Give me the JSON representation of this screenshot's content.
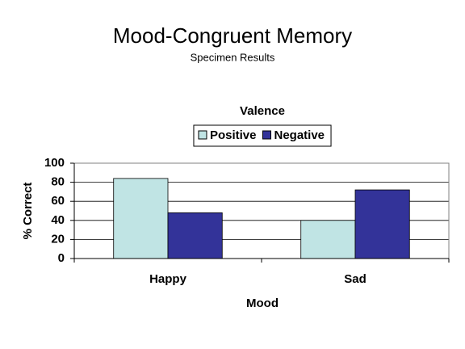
{
  "chart_data": {
    "type": "bar",
    "title": "Mood-Congruent Memory",
    "subtitle": "Specimen Results",
    "legend_title": "Valence",
    "x_label": "Mood",
    "y_label": "% Correct",
    "categories": [
      "Happy",
      "Sad"
    ],
    "series": [
      {
        "name": "Positive",
        "color": "#c0e4e4",
        "values": [
          84,
          40
        ]
      },
      {
        "name": "Negative",
        "color": "#333399",
        "values": [
          48,
          72
        ]
      }
    ],
    "ylim": [
      0,
      100
    ],
    "yticks": [
      0,
      20,
      40,
      60,
      80,
      100
    ],
    "grid": true,
    "legend": "top"
  }
}
